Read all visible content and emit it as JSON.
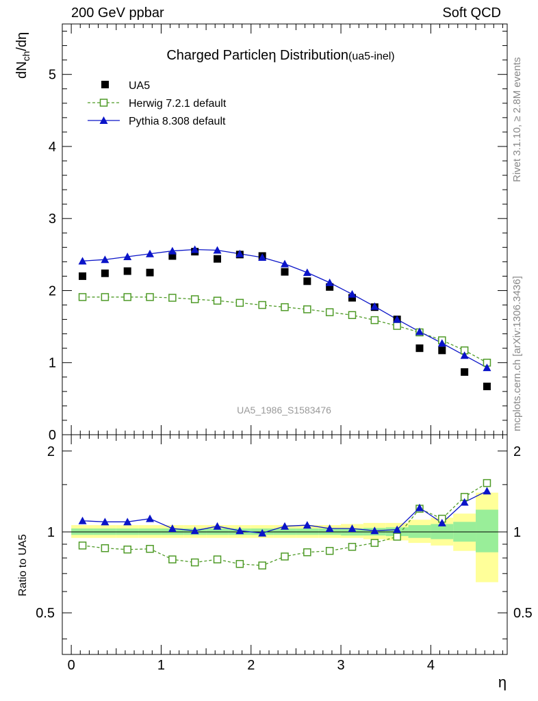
{
  "header": {
    "left": "200 GeV ppbar",
    "right": "Soft QCD"
  },
  "side": {
    "rivet": "Rivet 3.1.10, ≥ 2.8M events",
    "mcplots": "mcplots.cern.ch [arXiv:1306.3436]"
  },
  "chart_data": {
    "type": "scatter",
    "title_main": "Charged Particle",
    "title_eta": "η",
    "title_rest": " Distribution",
    "title_tag": "(ua5-inel)",
    "watermark": "UA5_1986_S1583476",
    "ylabel": "dN",
    "ylabel_sub": "ch",
    "ylabel_tail": "/dη",
    "xlabel": "η",
    "ratio_ylabel": "Ratio to UA5",
    "xlim": [
      -0.1,
      4.85
    ],
    "ylim": [
      0,
      5.7
    ],
    "ratio_ylim": [
      0.35,
      2.3
    ],
    "xticks": [
      "0",
      "1",
      "2",
      "3",
      "4"
    ],
    "yticks": [
      "0",
      "1",
      "2",
      "3",
      "4",
      "5"
    ],
    "ratio_yticks": [
      "0.5",
      "1",
      "2"
    ],
    "x": [
      0.125,
      0.375,
      0.625,
      0.875,
      1.125,
      1.375,
      1.625,
      1.875,
      2.125,
      2.375,
      2.625,
      2.875,
      3.125,
      3.375,
      3.625,
      3.875,
      4.125,
      4.375,
      4.625
    ],
    "series": [
      {
        "name": "UA5",
        "color": "#000000",
        "values": [
          2.2,
          2.24,
          2.27,
          2.25,
          2.48,
          2.54,
          2.44,
          2.5,
          2.48,
          2.26,
          2.13,
          2.05,
          1.9,
          1.77,
          1.6,
          1.2,
          1.17,
          0.87,
          0.67
        ]
      },
      {
        "name": "Herwig 7.2.1 default",
        "color": "#4e9a26",
        "values": [
          1.91,
          1.91,
          1.91,
          1.91,
          1.9,
          1.88,
          1.86,
          1.83,
          1.8,
          1.77,
          1.74,
          1.7,
          1.66,
          1.59,
          1.51,
          1.42,
          1.31,
          1.17,
          1.0
        ]
      },
      {
        "name": "Pythia 8.308 default",
        "color": "#0a14c8",
        "values": [
          2.41,
          2.43,
          2.47,
          2.51,
          2.55,
          2.57,
          2.56,
          2.51,
          2.46,
          2.37,
          2.25,
          2.11,
          1.95,
          1.78,
          1.6,
          1.43,
          1.27,
          1.1,
          0.93
        ]
      }
    ],
    "ratio_series": [
      {
        "name": "Herwig 7.2.1 default",
        "color": "#4e9a26",
        "values": [
          0.89,
          0.87,
          0.86,
          0.865,
          0.79,
          0.77,
          0.79,
          0.76,
          0.75,
          0.81,
          0.84,
          0.85,
          0.88,
          0.91,
          0.96,
          1.22,
          1.12,
          1.35,
          1.52
        ]
      },
      {
        "name": "Pythia 8.308 default",
        "color": "#0a14c8",
        "values": [
          1.1,
          1.09,
          1.09,
          1.12,
          1.03,
          1.01,
          1.05,
          1.01,
          0.99,
          1.05,
          1.06,
          1.03,
          1.03,
          1.01,
          1.02,
          1.23,
          1.08,
          1.29,
          1.42
        ]
      }
    ],
    "ratio_band_yellow": [
      [
        0.95,
        1.06
      ],
      [
        0.95,
        1.06
      ],
      [
        0.95,
        1.06
      ],
      [
        0.95,
        1.06
      ],
      [
        0.95,
        1.06
      ],
      [
        0.95,
        1.06
      ],
      [
        0.95,
        1.06
      ],
      [
        0.95,
        1.06
      ],
      [
        0.95,
        1.06
      ],
      [
        0.95,
        1.06
      ],
      [
        0.95,
        1.06
      ],
      [
        0.95,
        1.06
      ],
      [
        0.95,
        1.07
      ],
      [
        0.94,
        1.08
      ],
      [
        0.93,
        1.08
      ],
      [
        0.91,
        1.11
      ],
      [
        0.89,
        1.13
      ],
      [
        0.85,
        1.17
      ],
      [
        0.65,
        1.4
      ]
    ],
    "ratio_band_green": [
      [
        0.975,
        1.03
      ],
      [
        0.975,
        1.03
      ],
      [
        0.975,
        1.03
      ],
      [
        0.975,
        1.03
      ],
      [
        0.975,
        1.03
      ],
      [
        0.975,
        1.03
      ],
      [
        0.975,
        1.03
      ],
      [
        0.975,
        1.03
      ],
      [
        0.975,
        1.03
      ],
      [
        0.975,
        1.03
      ],
      [
        0.975,
        1.03
      ],
      [
        0.975,
        1.03
      ],
      [
        0.97,
        1.03
      ],
      [
        0.97,
        1.035
      ],
      [
        0.965,
        1.04
      ],
      [
        0.95,
        1.06
      ],
      [
        0.94,
        1.07
      ],
      [
        0.92,
        1.09
      ],
      [
        0.84,
        1.21
      ]
    ],
    "band_colors": {
      "yellow": "#ffff99",
      "green": "#99ee99"
    },
    "legend_position": "top-left"
  }
}
